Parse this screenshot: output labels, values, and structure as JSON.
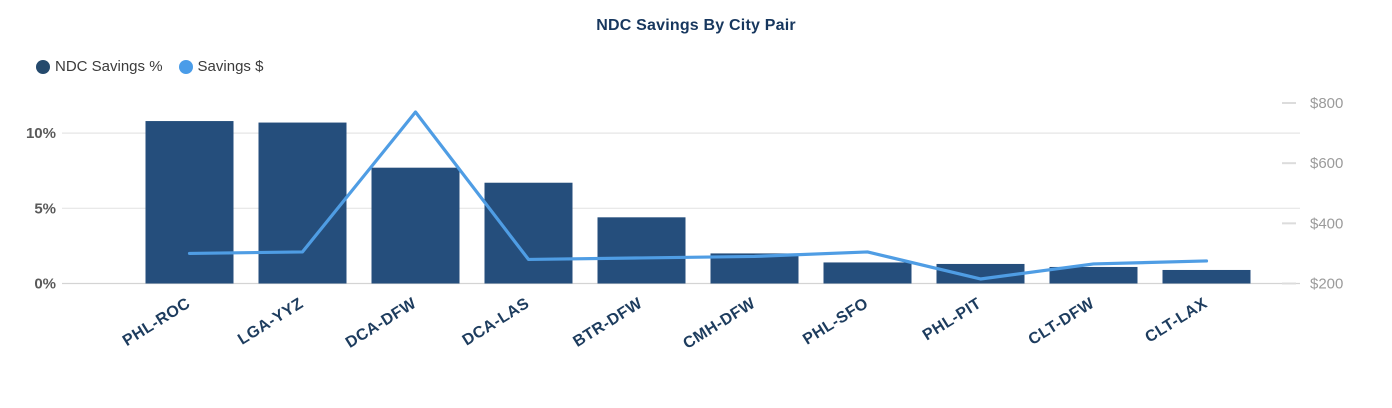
{
  "title": "NDC Savings By City Pair",
  "legend": {
    "items": [
      {
        "label": "NDC Savings %",
        "color": "#254a6d"
      },
      {
        "label": "Savings $",
        "color": "#4a9ce8"
      }
    ]
  },
  "chart_data": {
    "type": "bar",
    "subtype": "combo-bar-line-dual-axis",
    "title": "NDC Savings By City Pair",
    "categories": [
      "PHL-ROC",
      "LGA-YYZ",
      "DCA-DFW",
      "DCA-LAS",
      "BTR-DFW",
      "CMH-DFW",
      "PHL-SFO",
      "PHL-PIT",
      "CLT-DFW",
      "CLT-LAX"
    ],
    "series": [
      {
        "name": "NDC Savings %",
        "type": "bar",
        "axis": "left",
        "color": "#254e7c",
        "values": [
          10.8,
          10.7,
          7.7,
          6.7,
          4.4,
          2.0,
          1.4,
          1.3,
          1.1,
          0.9
        ]
      },
      {
        "name": "Savings $",
        "type": "line",
        "axis": "right",
        "color": "#4f9de4",
        "values": [
          300,
          305,
          770,
          280,
          285,
          290,
          305,
          215,
          265,
          275
        ]
      }
    ],
    "left_axis": {
      "ticks": [
        "0%",
        "5%",
        "10%"
      ],
      "tick_values": [
        0,
        5,
        10
      ],
      "range": [
        0,
        12.2
      ],
      "unit": "%"
    },
    "right_axis": {
      "ticks": [
        "$200",
        "$400",
        "$600",
        "$800"
      ],
      "tick_values": [
        200,
        400,
        600,
        800
      ],
      "range": [
        200,
        810
      ],
      "unit": "$"
    },
    "grid": "horizontal",
    "legend_position": "top-left",
    "xlabel": "",
    "ylabel": ""
  }
}
